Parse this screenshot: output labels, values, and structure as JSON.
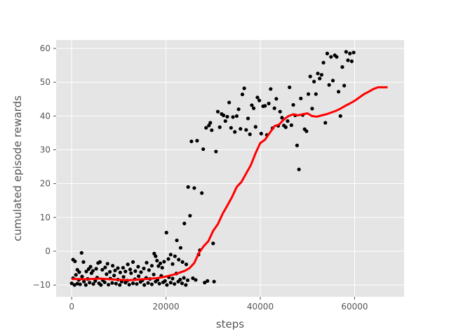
{
  "chart_data": {
    "type": "scatter",
    "title": "",
    "xlabel": "steps",
    "ylabel": "cumulated episode rewards",
    "xlim": [
      -3300,
      70500
    ],
    "ylim": [
      -13.5,
      62.5
    ],
    "xticks": [
      0,
      20000,
      40000,
      60000
    ],
    "yticks": [
      -10,
      0,
      10,
      20,
      30,
      40,
      50,
      60
    ],
    "grid": true,
    "legend": "none",
    "colors": {
      "background": "#e5e5e5",
      "grid": "#ffffff",
      "points": "#000000",
      "line": "#ff0000",
      "text": "#555555"
    },
    "series": [
      {
        "kind": "scatter",
        "points": [
          [
            0,
            -9.5
          ],
          [
            300,
            -8
          ],
          [
            600,
            -10
          ],
          [
            900,
            -7
          ],
          [
            1200,
            -9.6
          ],
          [
            1500,
            -8.5
          ],
          [
            1800,
            -9.8
          ],
          [
            2200,
            -7.5
          ],
          [
            2600,
            -9
          ],
          [
            3000,
            -10
          ],
          [
            3400,
            -8.2
          ],
          [
            3800,
            -9.3
          ],
          [
            4200,
            -6.5
          ],
          [
            4600,
            -9.7
          ],
          [
            5000,
            -8.8
          ],
          [
            5400,
            -7.8
          ],
          [
            5800,
            -9.5
          ],
          [
            6200,
            -10
          ],
          [
            6600,
            -8.6
          ],
          [
            7000,
            -9.2
          ],
          [
            7400,
            -6.8
          ],
          [
            7800,
            -9.9
          ],
          [
            8200,
            -8.1
          ],
          [
            8600,
            -9.4
          ],
          [
            9000,
            -7.2
          ],
          [
            9400,
            -9.6
          ],
          [
            9800,
            -8.4
          ],
          [
            10200,
            -10
          ],
          [
            10600,
            -9
          ],
          [
            11000,
            -7.6
          ],
          [
            11400,
            -9.3
          ],
          [
            11800,
            -8.7
          ],
          [
            12200,
            -9.9
          ],
          [
            12600,
            -6.5
          ],
          [
            13000,
            -9.5
          ],
          [
            13400,
            -8.3
          ],
          [
            13800,
            -9.7
          ],
          [
            14200,
            -7.4
          ],
          [
            14600,
            -9.1
          ],
          [
            15000,
            -8.6
          ],
          [
            15400,
            -10
          ],
          [
            15800,
            -7.9
          ],
          [
            16200,
            -9.4
          ],
          [
            16600,
            -8.2
          ],
          [
            17000,
            -9.8
          ],
          [
            17400,
            -6.9
          ],
          [
            17800,
            -9
          ],
          [
            18200,
            -8.5
          ],
          [
            18600,
            -9.6
          ],
          [
            19000,
            -7.3
          ],
          [
            19400,
            -9.2
          ],
          [
            19800,
            -8.8
          ],
          [
            20200,
            -10
          ],
          [
            20600,
            -7.7
          ],
          [
            21000,
            -9.3
          ],
          [
            21400,
            -8.1
          ],
          [
            21800,
            -9.7
          ],
          [
            22200,
            -6.6
          ],
          [
            22600,
            -9
          ],
          [
            23000,
            -8.4
          ],
          [
            23400,
            -9.5
          ],
          [
            23800,
            -7.9
          ],
          [
            24200,
            -10
          ],
          [
            24600,
            -8.6
          ],
          [
            300,
            -2.5
          ],
          [
            700,
            -3
          ],
          [
            1200,
            -5.5
          ],
          [
            1600,
            -6.2
          ],
          [
            2100,
            -0.5
          ],
          [
            2500,
            -3.2
          ],
          [
            3100,
            -6
          ],
          [
            3600,
            -5.3
          ],
          [
            4000,
            -4.6
          ],
          [
            4500,
            -5.8
          ],
          [
            5200,
            -5.2
          ],
          [
            5600,
            -3.5
          ],
          [
            6000,
            -3.2
          ],
          [
            6500,
            -5.5
          ],
          [
            7100,
            -4.8
          ],
          [
            7600,
            -3.7
          ],
          [
            8100,
            -6.1
          ],
          [
            8700,
            -4.3
          ],
          [
            9200,
            -5.7
          ],
          [
            9800,
            -5
          ],
          [
            10300,
            -6.3
          ],
          [
            10900,
            -4.9
          ],
          [
            11400,
            -6
          ],
          [
            11900,
            -3.9
          ],
          [
            12400,
            -5.4
          ],
          [
            13000,
            -3.2
          ],
          [
            13500,
            -5.9
          ],
          [
            14100,
            -4.6
          ],
          [
            14700,
            -6.2
          ],
          [
            15300,
            -5.1
          ],
          [
            15900,
            -3.4
          ],
          [
            16400,
            -5.6
          ],
          [
            17000,
            -4.3
          ],
          [
            17500,
            -0.7
          ],
          [
            17800,
            -1.5
          ],
          [
            18100,
            -2.8
          ],
          [
            18400,
            -4.4
          ],
          [
            18800,
            -3.6
          ],
          [
            19200,
            -4.9
          ],
          [
            19600,
            -3.1
          ],
          [
            20100,
            5.5
          ],
          [
            20500,
            -2.3
          ],
          [
            21000,
            -1
          ],
          [
            21400,
            -3.8
          ],
          [
            21900,
            -1.5
          ],
          [
            22300,
            3.2
          ],
          [
            22700,
            -2.5
          ],
          [
            23100,
            1
          ],
          [
            23500,
            -3.2
          ],
          [
            23900,
            8.2
          ],
          [
            24300,
            -3.9
          ],
          [
            24700,
            19
          ],
          [
            25100,
            10.5
          ],
          [
            25400,
            32.5
          ],
          [
            25700,
            -8
          ],
          [
            26000,
            18.7
          ],
          [
            26300,
            -8.5
          ],
          [
            26600,
            32.7
          ],
          [
            26900,
            -1
          ],
          [
            27200,
            0.3
          ],
          [
            27600,
            17.2
          ],
          [
            27900,
            30.2
          ],
          [
            28200,
            -9.3
          ],
          [
            28500,
            36.5
          ],
          [
            28800,
            -8.8
          ],
          [
            29100,
            37.2
          ],
          [
            29400,
            38
          ],
          [
            29700,
            35.8
          ],
          [
            30000,
            2.3
          ],
          [
            30200,
            -9
          ],
          [
            30600,
            29.5
          ],
          [
            31000,
            41.3
          ],
          [
            31400,
            36.7
          ],
          [
            31800,
            40.6
          ],
          [
            32200,
            40.2
          ],
          [
            32600,
            38.5
          ],
          [
            33000,
            39.8
          ],
          [
            33400,
            44
          ],
          [
            33800,
            36.5
          ],
          [
            34200,
            39.7
          ],
          [
            34600,
            35.3
          ],
          [
            35000,
            40
          ],
          [
            35400,
            42
          ],
          [
            35800,
            36.2
          ],
          [
            36200,
            46.4
          ],
          [
            36600,
            48.2
          ],
          [
            37000,
            35.9
          ],
          [
            37400,
            39.3
          ],
          [
            37800,
            34.6
          ],
          [
            38200,
            43.2
          ],
          [
            38600,
            42.3
          ],
          [
            39000,
            36.8
          ],
          [
            39400,
            45.5
          ],
          [
            39800,
            44.6
          ],
          [
            40200,
            34.8
          ],
          [
            40600,
            42.9
          ],
          [
            41000,
            43
          ],
          [
            41400,
            34.4
          ],
          [
            41800,
            43.7
          ],
          [
            42200,
            48
          ],
          [
            42600,
            36.4
          ],
          [
            43000,
            42.3
          ],
          [
            43400,
            45.1
          ],
          [
            43800,
            37.1
          ],
          [
            44200,
            41.3
          ],
          [
            44600,
            39.5
          ],
          [
            45000,
            37.2
          ],
          [
            45400,
            36.7
          ],
          [
            45800,
            38.5
          ],
          [
            46200,
            48.5
          ],
          [
            46600,
            37.3
          ],
          [
            47000,
            43.3
          ],
          [
            47400,
            40.2
          ],
          [
            47800,
            31.3
          ],
          [
            48200,
            24.2
          ],
          [
            48600,
            45.2
          ],
          [
            49000,
            40.3
          ],
          [
            49400,
            36.1
          ],
          [
            49800,
            35.5
          ],
          [
            50200,
            46.5
          ],
          [
            50600,
            51.7
          ],
          [
            51000,
            42.2
          ],
          [
            51400,
            50.2
          ],
          [
            51800,
            46.5
          ],
          [
            52200,
            52.6
          ],
          [
            52600,
            51.1
          ],
          [
            53000,
            52.2
          ],
          [
            53400,
            55.8
          ],
          [
            53800,
            38
          ],
          [
            54200,
            58.5
          ],
          [
            54600,
            49.2
          ],
          [
            55000,
            57.5
          ],
          [
            55400,
            50.5
          ],
          [
            55800,
            58
          ],
          [
            56200,
            57.5
          ],
          [
            56600,
            47.2
          ],
          [
            57000,
            40
          ],
          [
            57400,
            54.5
          ],
          [
            57800,
            49
          ],
          [
            58200,
            59
          ],
          [
            58600,
            56.5
          ],
          [
            59000,
            58.5
          ],
          [
            59400,
            56.2
          ],
          [
            59800,
            58.8
          ]
        ]
      },
      {
        "kind": "line",
        "points": [
          [
            0,
            -8.2
          ],
          [
            3000,
            -8.3
          ],
          [
            6000,
            -8.1
          ],
          [
            9000,
            -8.4
          ],
          [
            12000,
            -8.6
          ],
          [
            15000,
            -8.3
          ],
          [
            18000,
            -8
          ],
          [
            20000,
            -7.5
          ],
          [
            22000,
            -6.8
          ],
          [
            24000,
            -5.8
          ],
          [
            25000,
            -5
          ],
          [
            26000,
            -3.5
          ],
          [
            27000,
            -0.5
          ],
          [
            28000,
            1.5
          ],
          [
            29000,
            3
          ],
          [
            30000,
            6
          ],
          [
            31000,
            8
          ],
          [
            32000,
            11
          ],
          [
            33000,
            13.5
          ],
          [
            34000,
            16
          ],
          [
            35000,
            19
          ],
          [
            36000,
            20.5
          ],
          [
            37000,
            23
          ],
          [
            38000,
            25.5
          ],
          [
            39000,
            29
          ],
          [
            40000,
            32
          ],
          [
            41000,
            33
          ],
          [
            42000,
            35
          ],
          [
            43000,
            37
          ],
          [
            44000,
            37.5
          ],
          [
            45000,
            39
          ],
          [
            46000,
            40
          ],
          [
            47000,
            40.5
          ],
          [
            48000,
            40.2
          ],
          [
            49000,
            40.5
          ],
          [
            50000,
            40.8
          ],
          [
            51000,
            40
          ],
          [
            52000,
            39.8
          ],
          [
            53000,
            40.2
          ],
          [
            54000,
            40.5
          ],
          [
            55000,
            41
          ],
          [
            56000,
            41.5
          ],
          [
            57000,
            42.2
          ],
          [
            58000,
            43
          ],
          [
            59000,
            43.7
          ],
          [
            60000,
            44.5
          ],
          [
            61000,
            45.5
          ],
          [
            62000,
            46.5
          ],
          [
            63000,
            47.2
          ],
          [
            64000,
            48
          ],
          [
            65000,
            48.5
          ],
          [
            66000,
            48.5
          ],
          [
            67000,
            48.5
          ]
        ]
      }
    ]
  }
}
